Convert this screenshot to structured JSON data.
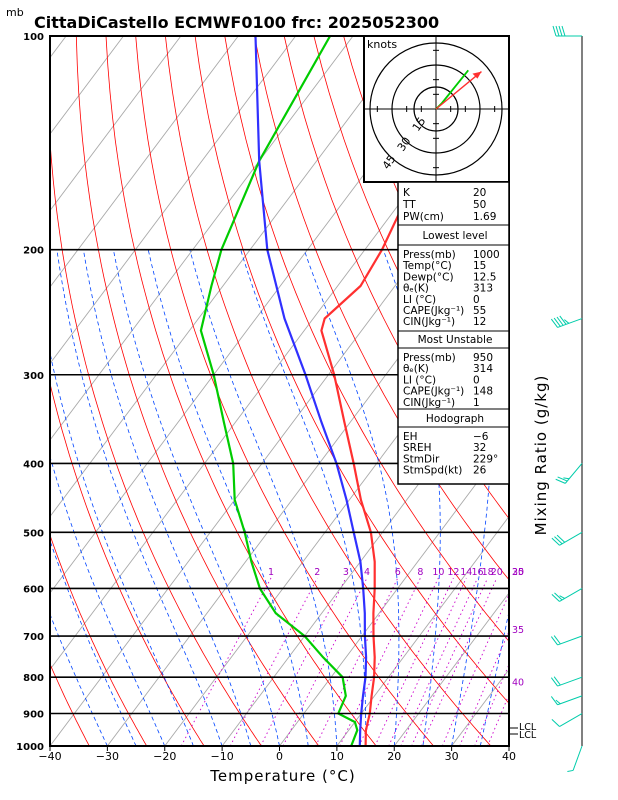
{
  "title": "CittaDiCastello ECMWF0100 frc: 2025052300",
  "pressure_unit": "mb",
  "xlabel": "Temperature (°C)",
  "right_label": "Mixing Ratio (g/kg)",
  "hodograph": {
    "unit": "knots",
    "rings": [
      "15",
      "30",
      "45"
    ]
  },
  "indices": [
    {
      "label": "K",
      "value": "20"
    },
    {
      "label": "TT",
      "value": "50"
    },
    {
      "label": "PW(cm)",
      "value": "1.69"
    }
  ],
  "lowest_level": {
    "header": "Lowest level",
    "rows": [
      {
        "label": "Press(mb)",
        "value": "1000"
      },
      {
        "label": "Temp(°C)",
        "value": "15"
      },
      {
        "label": "Dewp(°C)",
        "value": "12.5"
      },
      {
        "label": "θₑ(K)",
        "value": "313"
      },
      {
        "label": "LI (°C)",
        "value": "0"
      },
      {
        "label": "CAPE(Jkg⁻¹)",
        "value": "55"
      },
      {
        "label": "CIN(Jkg⁻¹)",
        "value": "12"
      }
    ]
  },
  "most_unstable": {
    "header": "Most Unstable",
    "rows": [
      {
        "label": "Press(mb)",
        "value": "950"
      },
      {
        "label": "θₑ(K)",
        "value": "314"
      },
      {
        "label": "LI (°C)",
        "value": "0"
      },
      {
        "label": "CAPE(Jkg⁻¹)",
        "value": "148"
      },
      {
        "label": "CIN(Jkg⁻¹)",
        "value": "1"
      }
    ]
  },
  "hodograph_params": {
    "header": "Hodograph",
    "rows": [
      {
        "label": "EH",
        "value": "−6"
      },
      {
        "label": "SREH",
        "value": "32"
      },
      {
        "label": "StmDir",
        "value": "229°"
      },
      {
        "label": "StmSpd(kt)",
        "value": "26"
      }
    ]
  },
  "lcl_labels": [
    "LCL",
    "LCL"
  ],
  "colors": {
    "temperature": "#ff3030",
    "dewpoint": "#00cc00",
    "parcel": "#3030ff",
    "isotherm": "#aaaaaa",
    "dry_adiabat": "#ff0000",
    "moist_adiabat": "#0044ff",
    "mixing_ratio": "#cc00cc",
    "wind": "#00ccaa"
  },
  "chart_data": {
    "type": "line",
    "title": "CittaDiCastello ECMWF0100 frc: 2025052300",
    "xlabel": "Temperature (°C)",
    "ylabel": "mb",
    "xlim": [
      -40,
      40
    ],
    "ylim": [
      1000,
      100
    ],
    "x_ticks": [
      -40,
      -30,
      -20,
      -10,
      0,
      10,
      20,
      30,
      40
    ],
    "pressure_ticks": [
      1000,
      900,
      800,
      700,
      600,
      500,
      400,
      300,
      200,
      100
    ],
    "mixing_ratio_labels": [
      {
        "value": "1",
        "p": 580
      },
      {
        "value": "2",
        "p": 580
      },
      {
        "value": "3",
        "p": 580
      },
      {
        "value": "4",
        "p": 580
      },
      {
        "value": "6",
        "p": 580
      },
      {
        "value": "8",
        "p": 580
      },
      {
        "value": "10",
        "p": 580
      },
      {
        "value": "12",
        "p": 580
      },
      {
        "value": "14",
        "p": 580
      },
      {
        "value": "16",
        "p": 580
      },
      {
        "value": "18",
        "p": 580
      },
      {
        "value": "20",
        "p": 580
      },
      {
        "value": "25",
        "p": 580
      },
      {
        "value": "30",
        "p": 580
      },
      {
        "value": "35",
        "p": 700
      },
      {
        "value": "40",
        "p": 830
      }
    ],
    "series": [
      {
        "name": "temperature",
        "points": [
          {
            "p": 1000,
            "t": 15
          },
          {
            "p": 950,
            "t": 13
          },
          {
            "p": 900,
            "t": 11.5
          },
          {
            "p": 850,
            "t": 9.5
          },
          {
            "p": 800,
            "t": 7.5
          },
          {
            "p": 750,
            "t": 5
          },
          {
            "p": 700,
            "t": 2
          },
          {
            "p": 650,
            "t": -1
          },
          {
            "p": 600,
            "t": -4
          },
          {
            "p": 550,
            "t": -7.5
          },
          {
            "p": 500,
            "t": -12
          },
          {
            "p": 450,
            "t": -18
          },
          {
            "p": 400,
            "t": -24
          },
          {
            "p": 350,
            "t": -31
          },
          {
            "p": 300,
            "t": -39
          },
          {
            "p": 260,
            "t": -47
          },
          {
            "p": 250,
            "t": -48
          },
          {
            "p": 225,
            "t": -46
          },
          {
            "p": 200,
            "t": -47
          },
          {
            "p": 175,
            "t": -49
          },
          {
            "p": 150,
            "t": -52
          },
          {
            "p": 125,
            "t": -55
          },
          {
            "p": 100,
            "t": -59
          }
        ]
      },
      {
        "name": "dewpoint",
        "points": [
          {
            "p": 1000,
            "t": 12.5
          },
          {
            "p": 950,
            "t": 11.5
          },
          {
            "p": 925,
            "t": 10
          },
          {
            "p": 900,
            "t": 6
          },
          {
            "p": 850,
            "t": 5
          },
          {
            "p": 800,
            "t": 2
          },
          {
            "p": 750,
            "t": -4
          },
          {
            "p": 700,
            "t": -10
          },
          {
            "p": 650,
            "t": -18
          },
          {
            "p": 600,
            "t": -24
          },
          {
            "p": 550,
            "t": -29
          },
          {
            "p": 500,
            "t": -34
          },
          {
            "p": 450,
            "t": -40
          },
          {
            "p": 400,
            "t": -45
          },
          {
            "p": 350,
            "t": -52
          },
          {
            "p": 300,
            "t": -60
          },
          {
            "p": 260,
            "t": -68
          },
          {
            "p": 225,
            "t": -72
          },
          {
            "p": 200,
            "t": -75
          },
          {
            "p": 150,
            "t": -80
          },
          {
            "p": 100,
            "t": -84
          }
        ]
      },
      {
        "name": "parcel",
        "points": [
          {
            "p": 1000,
            "t": 14
          },
          {
            "p": 950,
            "t": 12
          },
          {
            "p": 900,
            "t": 10
          },
          {
            "p": 850,
            "t": 8
          },
          {
            "p": 800,
            "t": 6
          },
          {
            "p": 750,
            "t": 3.5
          },
          {
            "p": 700,
            "t": 0.5
          },
          {
            "p": 650,
            "t": -2.5
          },
          {
            "p": 600,
            "t": -6
          },
          {
            "p": 550,
            "t": -10
          },
          {
            "p": 500,
            "t": -15
          },
          {
            "p": 450,
            "t": -20.5
          },
          {
            "p": 400,
            "t": -27
          },
          {
            "p": 350,
            "t": -35
          },
          {
            "p": 300,
            "t": -44
          },
          {
            "p": 250,
            "t": -55
          },
          {
            "p": 200,
            "t": -67
          },
          {
            "p": 150,
            "t": -80
          },
          {
            "p": 100,
            "t": -97
          }
        ]
      }
    ],
    "hodograph_vectors": [
      {
        "name": "shear",
        "u": 10,
        "v": 12
      },
      {
        "name": "storm",
        "u": 20,
        "v": 15
      }
    ],
    "wind_barbs": [
      {
        "p": 100,
        "dir": 270,
        "spd": 40
      },
      {
        "p": 250,
        "dir": 250,
        "spd": 45
      },
      {
        "p": 400,
        "dir": 220,
        "spd": 25
      },
      {
        "p": 500,
        "dir": 240,
        "spd": 30
      },
      {
        "p": 600,
        "dir": 240,
        "spd": 25
      },
      {
        "p": 700,
        "dir": 250,
        "spd": 20
      },
      {
        "p": 800,
        "dir": 250,
        "spd": 20
      },
      {
        "p": 850,
        "dir": 250,
        "spd": 15
      },
      {
        "p": 900,
        "dir": 240,
        "spd": 10
      },
      {
        "p": 1000,
        "dir": 200,
        "spd": 5
      }
    ]
  }
}
